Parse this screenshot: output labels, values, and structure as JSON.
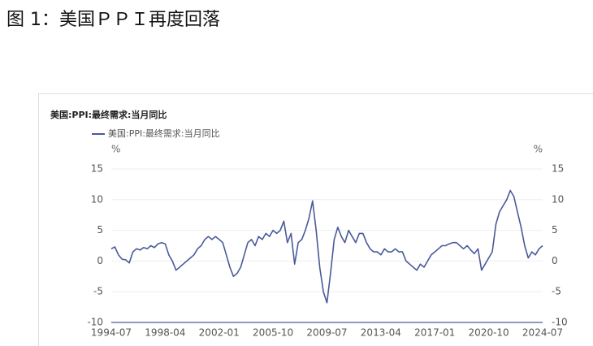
{
  "header": {
    "title": "图 1：美国ＰＰＩ再度回落"
  },
  "chart_data": {
    "type": "line",
    "title": "美国:PPI:最终需求:当月同比",
    "y_unit": "%",
    "x": [
      "1994-07",
      "1994-10",
      "1995-01",
      "1995-04",
      "1995-07",
      "1995-10",
      "1996-01",
      "1996-04",
      "1996-07",
      "1996-10",
      "1997-01",
      "1997-04",
      "1997-07",
      "1997-10",
      "1998-01",
      "1998-04",
      "1998-07",
      "1998-10",
      "1999-01",
      "1999-04",
      "1999-07",
      "1999-10",
      "2000-01",
      "2000-04",
      "2000-07",
      "2000-10",
      "2001-01",
      "2001-04",
      "2001-07",
      "2001-10",
      "2002-01",
      "2002-04",
      "2002-07",
      "2002-10",
      "2003-01",
      "2003-04",
      "2003-07",
      "2003-10",
      "2004-01",
      "2004-04",
      "2004-07",
      "2004-10",
      "2005-01",
      "2005-04",
      "2005-07",
      "2005-10",
      "2006-01",
      "2006-04",
      "2006-07",
      "2006-10",
      "2007-01",
      "2007-04",
      "2007-07",
      "2007-10",
      "2008-01",
      "2008-04",
      "2008-07",
      "2008-10",
      "2009-01",
      "2009-04",
      "2009-07",
      "2009-10",
      "2010-01",
      "2010-04",
      "2010-07",
      "2010-10",
      "2011-01",
      "2011-04",
      "2011-07",
      "2011-10",
      "2012-01",
      "2012-04",
      "2012-07",
      "2012-10",
      "2013-01",
      "2013-04",
      "2013-07",
      "2013-10",
      "2014-01",
      "2014-04",
      "2014-07",
      "2014-10",
      "2015-01",
      "2015-04",
      "2015-07",
      "2015-10",
      "2016-01",
      "2016-04",
      "2016-07",
      "2016-10",
      "2017-01",
      "2017-04",
      "2017-07",
      "2017-10",
      "2018-01",
      "2018-04",
      "2018-07",
      "2018-10",
      "2019-01",
      "2019-04",
      "2019-07",
      "2019-10",
      "2020-01",
      "2020-04",
      "2020-07",
      "2020-10",
      "2021-01",
      "2021-04",
      "2021-07",
      "2021-10",
      "2022-01",
      "2022-04",
      "2022-07",
      "2022-10",
      "2023-01",
      "2023-04",
      "2023-07",
      "2023-10",
      "2024-01",
      "2024-04",
      "2024-07"
    ],
    "series": [
      {
        "name": "美国:PPI:最终需求:当月同比",
        "color": "#4a5a9a",
        "values": [
          2,
          2.3,
          1,
          0.3,
          0.2,
          -0.3,
          1.5,
          2,
          1.8,
          2.2,
          2,
          2.5,
          2.2,
          2.8,
          3,
          2.8,
          1,
          0,
          -1.5,
          -1,
          -0.5,
          0,
          0.5,
          1,
          2,
          2.5,
          3.5,
          4,
          3.5,
          4,
          3.5,
          3,
          1,
          -1,
          -2.5,
          -2,
          -1,
          1,
          3,
          3.5,
          2.5,
          4,
          3.5,
          4.5,
          4,
          5,
          4.5,
          5,
          6.5,
          3,
          4.5,
          -0.5,
          3,
          3.5,
          5,
          7,
          9.8,
          5,
          -1,
          -5,
          -6.8,
          -2,
          3.5,
          5.5,
          4,
          3,
          5,
          4,
          3,
          4.5,
          4.5,
          3,
          2,
          1.5,
          1.5,
          1,
          2,
          1.5,
          1.5,
          2,
          1.5,
          1.5,
          0,
          -0.5,
          -1,
          -1.5,
          -0.5,
          -1,
          0,
          1,
          1.5,
          2,
          2.5,
          2.5,
          2.8,
          3,
          3,
          2.5,
          2,
          2.5,
          1.8,
          1.2,
          2,
          -1.5,
          -0.5,
          0.5,
          1.5,
          6,
          8,
          9,
          10,
          11.5,
          10.5,
          8,
          5.5,
          2.5,
          0.5,
          1.5,
          1,
          2,
          2.5
        ]
      }
    ],
    "xticks": [
      "1994-07",
      "1998-04",
      "2002-01",
      "2005-10",
      "2009-07",
      "2013-04",
      "2017-01",
      "2020-10",
      "2024-07"
    ],
    "ylim": [
      -10,
      15
    ],
    "yticks": [
      -10,
      -5,
      0,
      5,
      10,
      15
    ],
    "grid": true
  }
}
